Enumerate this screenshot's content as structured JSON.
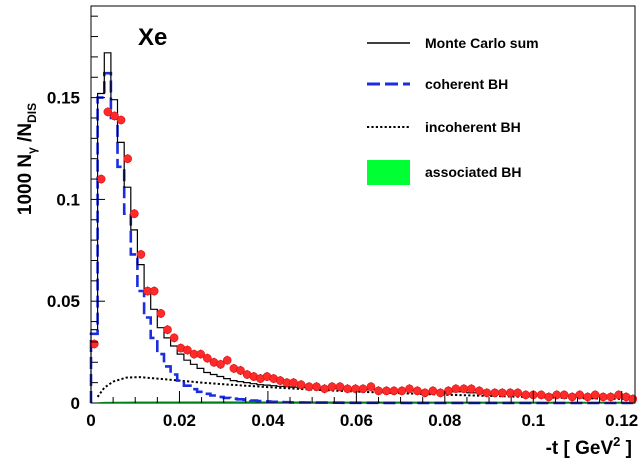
{
  "chart_data": {
    "type": "line",
    "panel_label": "Xe",
    "xlabel": {
      "main": "-t [ GeV",
      "sup": "2",
      "end": " ]"
    },
    "ylabel": {
      "a": "1000 N",
      "sub1": "γ",
      "b": " /N",
      "sub2": "DIS"
    },
    "xlim": [
      0,
      0.123
    ],
    "ylim": [
      0,
      0.195
    ],
    "x_ticks": [
      {
        "v": 0,
        "label": "0"
      },
      {
        "v": 0.02,
        "label": "0.02"
      },
      {
        "v": 0.04,
        "label": "0.04"
      },
      {
        "v": 0.06,
        "label": "0.06"
      },
      {
        "v": 0.08,
        "label": "0.08"
      },
      {
        "v": 0.1,
        "label": "0.1"
      },
      {
        "v": 0.12,
        "label": "0.12"
      }
    ],
    "y_ticks": [
      {
        "v": 0,
        "label": "0"
      },
      {
        "v": 0.05,
        "label": "0.05"
      },
      {
        "v": 0.1,
        "label": "0.1"
      },
      {
        "v": 0.15,
        "label": "0.15"
      }
    ],
    "legend": [
      {
        "key": "mc_sum",
        "label": "Monte Carlo sum",
        "style": "solid-line",
        "color": "#000000"
      },
      {
        "key": "coherent",
        "label": "coherent BH",
        "style": "dashed-line",
        "color": "#1a2ee0"
      },
      {
        "key": "incoherent",
        "label": "incoherent BH",
        "style": "dotted-line",
        "color": "#000000"
      },
      {
        "key": "associated",
        "label": "associated BH",
        "style": "filled-box",
        "color": "#00ff33"
      }
    ],
    "bin_edges": [
      0,
      0.0015,
      0.003,
      0.0045,
      0.006,
      0.0075,
      0.009,
      0.0105,
      0.012,
      0.0135,
      0.015,
      0.0165,
      0.018,
      0.0195,
      0.021,
      0.0225,
      0.024,
      0.0255,
      0.027,
      0.0285,
      0.03,
      0.0315,
      0.033,
      0.0345,
      0.036,
      0.0375,
      0.039,
      0.0405,
      0.042,
      0.0435,
      0.045,
      0.048,
      0.051,
      0.054,
      0.057,
      0.06,
      0.065,
      0.07,
      0.075,
      0.08,
      0.085,
      0.09,
      0.095,
      0.1,
      0.105,
      0.11,
      0.115,
      0.12,
      0.123
    ],
    "series": {
      "mc_sum": [
        0.036,
        0.152,
        0.172,
        0.149,
        0.128,
        0.106,
        0.085,
        0.068,
        0.056,
        0.046,
        0.037,
        0.032,
        0.028,
        0.024,
        0.021,
        0.019,
        0.017,
        0.015,
        0.014,
        0.013,
        0.012,
        0.011,
        0.0105,
        0.01,
        0.0095,
        0.009,
        0.0088,
        0.0085,
        0.0082,
        0.008,
        0.0078,
        0.0075,
        0.0072,
        0.007,
        0.0068,
        0.0065,
        0.0062,
        0.006,
        0.0058,
        0.0055,
        0.005,
        0.0045,
        0.0042,
        0.004,
        0.0038,
        0.0035,
        0.0033,
        0.003
      ],
      "coherent": [
        0.034,
        0.15,
        0.162,
        0.14,
        0.116,
        0.093,
        0.073,
        0.055,
        0.042,
        0.032,
        0.024,
        0.018,
        0.014,
        0.011,
        0.0085,
        0.0068,
        0.0055,
        0.0045,
        0.0037,
        0.003,
        0.0025,
        0.0021,
        0.0018,
        0.0015,
        0.0012,
        0.001,
        0.0008,
        0.0006,
        0.0005,
        0.0004,
        0.0003,
        0.00025,
        0.0002,
        0.00015,
        0.0001,
        0.0001,
        0,
        0,
        0,
        0,
        0,
        0,
        0,
        0,
        0,
        0,
        0,
        0
      ],
      "incoherent": [
        [
          0.0015,
          0.003
        ],
        [
          0.003,
          0.0075
        ],
        [
          0.005,
          0.0105
        ],
        [
          0.008,
          0.0125
        ],
        [
          0.011,
          0.0127
        ],
        [
          0.015,
          0.012
        ],
        [
          0.02,
          0.011
        ],
        [
          0.025,
          0.01
        ],
        [
          0.03,
          0.0092
        ],
        [
          0.035,
          0.0085
        ],
        [
          0.04,
          0.0078
        ],
        [
          0.05,
          0.0066
        ],
        [
          0.06,
          0.0056
        ],
        [
          0.07,
          0.0048
        ],
        [
          0.08,
          0.0041
        ],
        [
          0.09,
          0.0035
        ],
        [
          0.1,
          0.0029
        ],
        [
          0.11,
          0.0024
        ],
        [
          0.12,
          0.002
        ],
        [
          0.123,
          0.0019
        ]
      ],
      "associated": [
        [
          0,
          0
        ],
        [
          0.003,
          0.0006
        ],
        [
          0.01,
          0.0009
        ],
        [
          0.03,
          0.001
        ],
        [
          0.06,
          0.0009
        ],
        [
          0.09,
          0.0008
        ],
        [
          0.123,
          0.0007
        ]
      ],
      "data": [
        [
          0.00075,
          0.029
        ],
        [
          0.0023,
          0.11
        ],
        [
          0.0038,
          0.143
        ],
        [
          0.0053,
          0.141
        ],
        [
          0.0068,
          0.139
        ],
        [
          0.0083,
          0.12
        ],
        [
          0.0098,
          0.093
        ],
        [
          0.0113,
          0.073
        ],
        [
          0.0128,
          0.055
        ],
        [
          0.0143,
          0.055
        ],
        [
          0.0158,
          0.044
        ],
        [
          0.0173,
          0.036
        ],
        [
          0.0188,
          0.032
        ],
        [
          0.0203,
          0.027
        ],
        [
          0.0218,
          0.026
        ],
        [
          0.0233,
          0.024
        ],
        [
          0.0248,
          0.024
        ],
        [
          0.0263,
          0.022
        ],
        [
          0.0278,
          0.02
        ],
        [
          0.0293,
          0.019
        ],
        [
          0.0308,
          0.021
        ],
        [
          0.0323,
          0.017
        ],
        [
          0.0338,
          0.016
        ],
        [
          0.0353,
          0.014
        ],
        [
          0.0368,
          0.013
        ],
        [
          0.0383,
          0.012
        ],
        [
          0.0398,
          0.013
        ],
        [
          0.0413,
          0.012
        ],
        [
          0.0428,
          0.011
        ],
        [
          0.0443,
          0.01
        ],
        [
          0.0458,
          0.01
        ],
        [
          0.0475,
          0.009
        ],
        [
          0.0493,
          0.008
        ],
        [
          0.051,
          0.008
        ],
        [
          0.0528,
          0.007
        ],
        [
          0.0545,
          0.008
        ],
        [
          0.0563,
          0.008
        ],
        [
          0.058,
          0.007
        ],
        [
          0.0598,
          0.007
        ],
        [
          0.0615,
          0.007
        ],
        [
          0.0633,
          0.008
        ],
        [
          0.065,
          0.006
        ],
        [
          0.0668,
          0.006
        ],
        [
          0.0685,
          0.006
        ],
        [
          0.0703,
          0.006
        ],
        [
          0.072,
          0.007
        ],
        [
          0.0738,
          0.006
        ],
        [
          0.0755,
          0.005
        ],
        [
          0.0773,
          0.006
        ],
        [
          0.079,
          0.005
        ],
        [
          0.0808,
          0.006
        ],
        [
          0.0825,
          0.007
        ],
        [
          0.0843,
          0.007
        ],
        [
          0.086,
          0.007
        ],
        [
          0.0878,
          0.006
        ],
        [
          0.0895,
          0.005
        ],
        [
          0.0913,
          0.005
        ],
        [
          0.093,
          0.005
        ],
        [
          0.0948,
          0.005
        ],
        [
          0.0965,
          0.005
        ],
        [
          0.0983,
          0.004
        ],
        [
          0.1,
          0.004
        ],
        [
          0.1018,
          0.004
        ],
        [
          0.1035,
          0.003
        ],
        [
          0.1053,
          0.004
        ],
        [
          0.107,
          0.004
        ],
        [
          0.1088,
          0.003
        ],
        [
          0.1105,
          0.004
        ],
        [
          0.1123,
          0.003
        ],
        [
          0.114,
          0.004
        ],
        [
          0.1158,
          0.003
        ],
        [
          0.1175,
          0.003
        ],
        [
          0.1193,
          0.004
        ],
        [
          0.121,
          0.003
        ],
        [
          0.1225,
          0.002
        ]
      ],
      "data_error": 0.0022
    }
  }
}
